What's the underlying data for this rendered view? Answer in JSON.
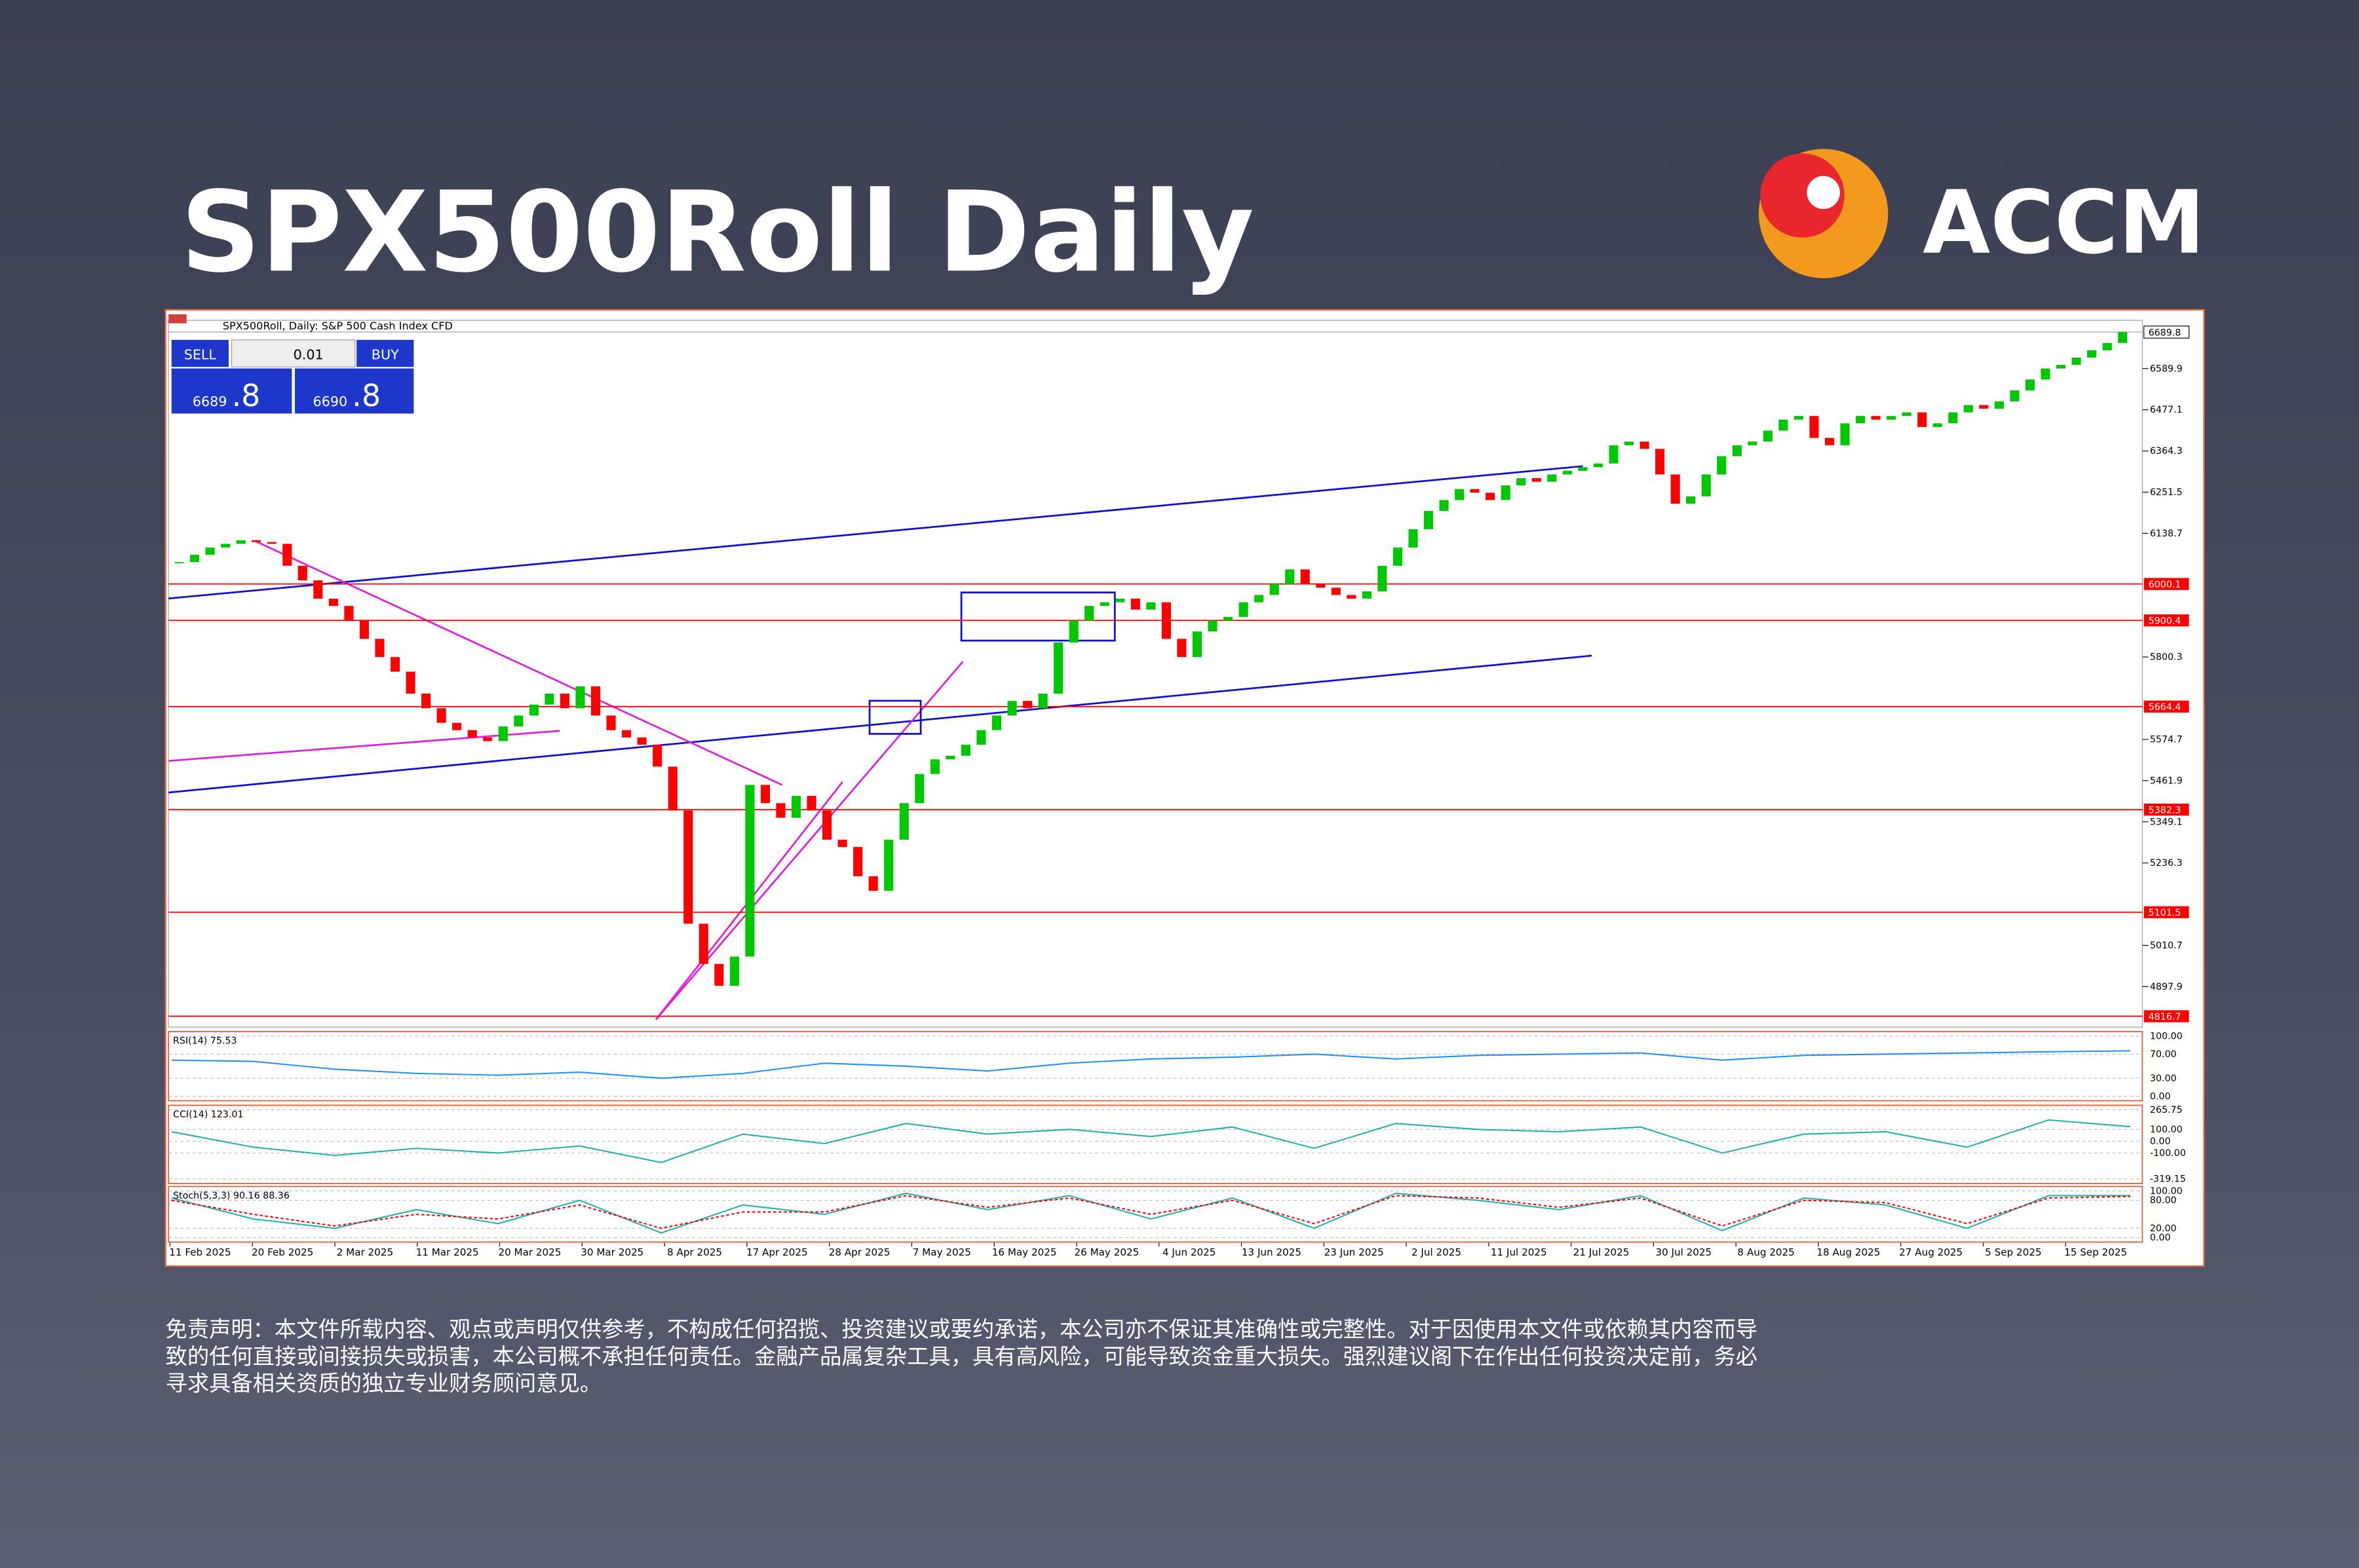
{
  "header": {
    "title": "SPX500Roll Daily",
    "logo": "ACCM"
  },
  "chart_data": {
    "type": "candlestick",
    "caption": "SPX500Roll, Daily:  S&P 500 Cash Index CFD",
    "trade_panel": {
      "sell": "SELL",
      "buy": "BUY",
      "lot": "0.01",
      "bid": [
        "6689",
        ".8"
      ],
      "ask": [
        "6690",
        ".8"
      ]
    },
    "ylim": [
      4787,
      6722
    ],
    "yticks": [
      4897.9,
      5010.7,
      5236.3,
      5349.1,
      5461.9,
      5574.7,
      5800.3,
      6138.7,
      6251.5,
      6364.3,
      6477.1,
      6589.9
    ],
    "levels": [
      6000.1,
      5900.4,
      5664.4,
      5382.3,
      5101.5,
      4816.7
    ],
    "level_color": "#ff0000",
    "current_price": 6689.8,
    "categories": [
      "11 Feb 2025",
      "20 Feb 2025",
      "2 Mar 2025",
      "11 Mar 2025",
      "20 Mar 2025",
      "30 Mar 2025",
      "8 Apr 2025",
      "17 Apr 2025",
      "28 Apr 2025",
      "7 May 2025",
      "16 May 2025",
      "26 May 2025",
      "4 Jun 2025",
      "13 Jun 2025",
      "23 Jun 2025",
      "2 Jul 2025",
      "11 Jul 2025",
      "21 Jul 2025",
      "30 Jul 2025",
      "8 Aug 2025",
      "18 Aug 2025",
      "27 Aug 2025",
      "5 Sep 2025",
      "15 Sep 2025"
    ],
    "closes": [
      6060,
      6080,
      6100,
      6110,
      6120,
      6115,
      6110,
      6050,
      6010,
      5960,
      5940,
      5900,
      5850,
      5800,
      5760,
      5700,
      5660,
      5620,
      5600,
      5580,
      5570,
      5610,
      5640,
      5670,
      5700,
      5660,
      5720,
      5640,
      5600,
      5580,
      5560,
      5500,
      5380,
      5070,
      4960,
      4900,
      4980,
      5450,
      5400,
      5360,
      5420,
      5380,
      5300,
      5280,
      5200,
      5160,
      5300,
      5400,
      5480,
      5520,
      5530,
      5560,
      5600,
      5640,
      5680,
      5660,
      5700,
      5840,
      5900,
      5940,
      5950,
      5960,
      5930,
      5950,
      5850,
      5800,
      5870,
      5900,
      5910,
      5950,
      5970,
      6000,
      6040,
      6000,
      5990,
      5970,
      5960,
      5980,
      6050,
      6100,
      6150,
      6200,
      6230,
      6260,
      6250,
      6230,
      6270,
      6290,
      6280,
      6300,
      6310,
      6320,
      6330,
      6380,
      6390,
      6370,
      6300,
      6220,
      6240,
      6300,
      6350,
      6380,
      6390,
      6420,
      6450,
      6460,
      6400,
      6380,
      6440,
      6460,
      6450,
      6460,
      6470,
      6430,
      6440,
      6470,
      6490,
      6480,
      6500,
      6530,
      6560,
      6590,
      6600,
      6620,
      6640,
      6660,
      6690
    ],
    "up_color": "#00c800",
    "down_color": "#ff0000",
    "indicators": [
      {
        "label": "RSI(14) 75.53",
        "ylim": [
          0,
          100
        ],
        "yticks": [
          {
            "value": 100,
            "label": "100.00"
          },
          {
            "value": 70,
            "label": "70.00"
          },
          {
            "value": 30,
            "label": "30.00"
          },
          {
            "value": 0,
            "label": "0.00"
          }
        ],
        "series": [
          {
            "color": "#1e90ff",
            "values": [
              60,
              58,
              45,
              38,
              35,
              40,
              30,
              38,
              55,
              50,
              42,
              55,
              62,
              65,
              70,
              62,
              68,
              70,
              72,
              60,
              68,
              70,
              72,
              74,
              75.53
            ]
          }
        ]
      },
      {
        "label": "CCI(14) 123.01",
        "ylim": [
          -319.15,
          265.75
        ],
        "yticks": [
          {
            "value": 265.75,
            "label": "265.75"
          },
          {
            "value": 100,
            "label": "100.00"
          },
          {
            "value": 0,
            "label": "0.00"
          },
          {
            "value": -100,
            "label": "-100.00"
          },
          {
            "value": -319.15,
            "label": "-319.15"
          }
        ],
        "series": [
          {
            "color": "#20b2aa",
            "values": [
              80,
              -50,
              -120,
              -60,
              -100,
              -40,
              -180,
              60,
              -20,
              150,
              60,
              100,
              40,
              120,
              -60,
              150,
              100,
              80,
              120,
              -100,
              60,
              80,
              -50,
              180,
              123.01
            ]
          }
        ]
      },
      {
        "label": "Stoch(5,3,3) 90.16 88.36",
        "ylim": [
          0,
          100
        ],
        "yticks": [
          {
            "value": 100,
            "label": "100.00"
          },
          {
            "value": 80,
            "label": "80.00"
          },
          {
            "value": 20,
            "label": "20.00"
          },
          {
            "value": 0,
            "label": "0.00"
          }
        ],
        "series": [
          {
            "color": "#20b2aa",
            "values": [
              85,
              40,
              20,
              60,
              30,
              80,
              10,
              70,
              50,
              95,
              60,
              90,
              40,
              85,
              20,
              95,
              80,
              60,
              90,
              15,
              85,
              70,
              20,
              90,
              90.16
            ]
          },
          {
            "color": "#ff0000",
            "values": [
              80,
              50,
              25,
              50,
              40,
              70,
              20,
              55,
              55,
              90,
              65,
              85,
              50,
              80,
              30,
              90,
              85,
              65,
              85,
              25,
              80,
              75,
              30,
              85,
              88.36
            ]
          }
        ]
      }
    ]
  },
  "disclaimer": [
    "免责声明：本文件所载内容、观点或声明仅供参考，不构成任何招揽、投资建议或要约承诺，本公司亦不保证其准确性或完整性。对于因使用本文件或依赖其内容而导",
    "致的任何直接或间接损失或损害，本公司概不承担任何责任。金融产品属复杂工具，具有高风险，可能导致资金重大损失。强烈建议阁下在作出任何投资决定前，务必",
    "寻求具备相关资质的独立专业财务顾问意见。"
  ]
}
